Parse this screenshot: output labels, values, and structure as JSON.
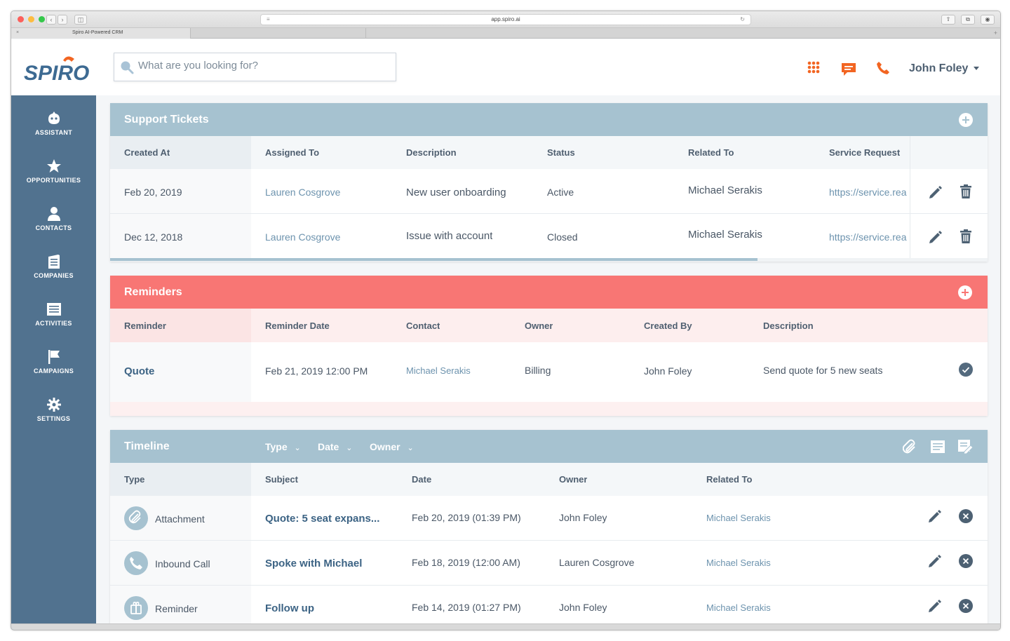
{
  "browser": {
    "url": "app.spiro.ai",
    "tab_title": "Spiro AI-Powered CRM"
  },
  "header": {
    "brand": "SPIRO",
    "search_placeholder": "What are you looking for?",
    "user_name": "John Foley",
    "accent_color": "#f26522"
  },
  "sidebar": {
    "bg_color": "#51728f",
    "items": [
      {
        "label": "ASSISTANT",
        "icon": "assistant-icon"
      },
      {
        "label": "OPPORTUNITIES",
        "icon": "star-icon"
      },
      {
        "label": "CONTACTS",
        "icon": "person-icon"
      },
      {
        "label": "COMPANIES",
        "icon": "building-icon"
      },
      {
        "label": "ACTIVITIES",
        "icon": "list-icon"
      },
      {
        "label": "CAMPAIGNS",
        "icon": "flag-icon"
      },
      {
        "label": "SETTINGS",
        "icon": "gear-icon"
      }
    ]
  },
  "support_tickets": {
    "title": "Support Tickets",
    "header_color": "#a6c2d0",
    "columns": [
      "Created At",
      "Assigned To",
      "Description",
      "Status",
      "Related To",
      "Service Request"
    ],
    "rows": [
      {
        "created_at": "Feb 20, 2019",
        "assigned_to": "Lauren Cosgrove",
        "description": "New user onboarding",
        "status": "Active",
        "related_to": "Michael Serakis",
        "service_request": "https://service.rea"
      },
      {
        "created_at": "Dec 12, 2018",
        "assigned_to": "Lauren Cosgrove",
        "description": "Issue with account",
        "status": "Closed",
        "related_to": "Michael Serakis",
        "service_request": "https://service.rea"
      }
    ]
  },
  "reminders": {
    "title": "Reminders",
    "header_color": "#f87674",
    "columns": [
      "Reminder",
      "Reminder Date",
      "Contact",
      "Owner",
      "Created By",
      "Description"
    ],
    "rows": [
      {
        "reminder": "Quote",
        "date": "Feb 21, 2019 12:00 PM",
        "contact": "Michael Serakis",
        "owner": "Billing",
        "created_by": "John Foley",
        "description": "Send quote for 5 new seats"
      }
    ]
  },
  "timeline": {
    "title": "Timeline",
    "filters": [
      "Type",
      "Date",
      "Owner"
    ],
    "columns": [
      "Type",
      "Subject",
      "Date",
      "Owner",
      "Related To"
    ],
    "rows": [
      {
        "type": "Attachment",
        "icon": "paperclip-icon",
        "subject": "Quote: 5 seat expans...",
        "date": "Feb 20, 2019 (01:39 PM)",
        "owner": "John Foley",
        "related_to": "Michael Serakis"
      },
      {
        "type": "Inbound Call",
        "icon": "phone-icon",
        "subject": "Spoke with Michael",
        "date": "Feb 18, 2019 (12:00 AM)",
        "owner": "Lauren Cosgrove",
        "related_to": "Michael Serakis"
      },
      {
        "type": "Reminder",
        "icon": "reminder-icon",
        "subject": "Follow up",
        "date": "Feb 14, 2019 (01:27 PM)",
        "owner": "John Foley",
        "related_to": "Michael Serakis"
      }
    ]
  }
}
